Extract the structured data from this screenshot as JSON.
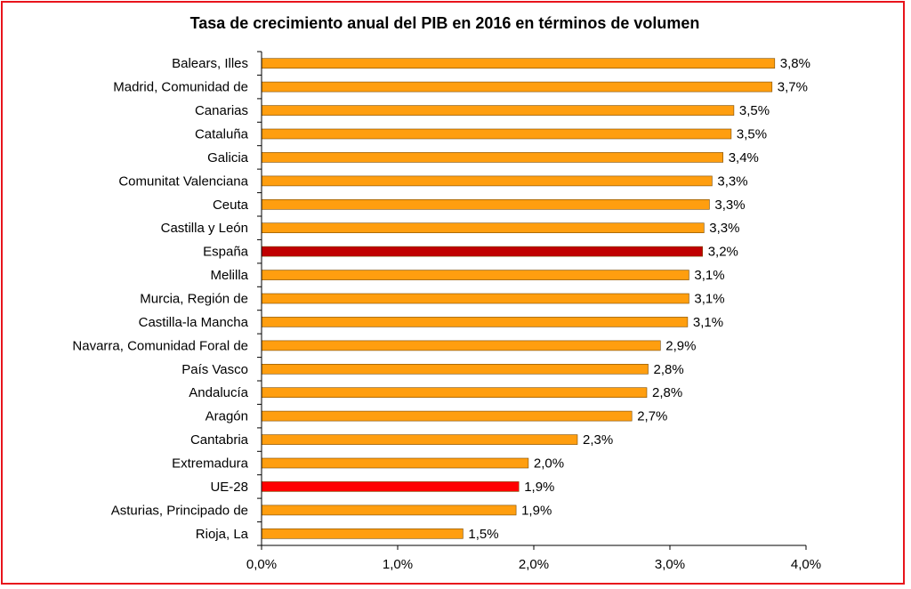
{
  "chart_data": {
    "type": "bar",
    "orientation": "horizontal",
    "title": "Tasa de crecimiento anual del PIB en 2016 en términos de volumen",
    "categories": [
      "Balears, Illes",
      "Madrid, Comunidad de",
      "Canarias",
      "Cataluña",
      "Galicia",
      "Comunitat Valenciana",
      "Ceuta",
      "Castilla y León",
      "España",
      "Melilla",
      "Murcia, Región de",
      "Castilla-la Mancha",
      "Navarra, Comunidad Foral de",
      "País Vasco",
      "Andalucía",
      "Aragón",
      "Cantabria",
      "Extremadura",
      "UE-28",
      "Asturias, Principado de",
      "Rioja, La"
    ],
    "values": [
      3.77,
      3.75,
      3.47,
      3.45,
      3.39,
      3.31,
      3.29,
      3.25,
      3.24,
      3.14,
      3.14,
      3.13,
      2.93,
      2.84,
      2.83,
      2.72,
      2.32,
      1.96,
      1.89,
      1.87,
      1.48
    ],
    "data_labels": [
      "3,8%",
      "3,7%",
      "3,5%",
      "3,5%",
      "3,4%",
      "3,3%",
      "3,3%",
      "3,3%",
      "3,2%",
      "3,1%",
      "3,1%",
      "3,1%",
      "2,9%",
      "2,8%",
      "2,8%",
      "2,7%",
      "2,3%",
      "2,0%",
      "1,9%",
      "1,9%",
      "1,5%"
    ],
    "bar_colors": [
      "#ff9e0f",
      "#ff9e0f",
      "#ff9e0f",
      "#ff9e0f",
      "#ff9e0f",
      "#ff9e0f",
      "#ff9e0f",
      "#ff9e0f",
      "#c00000",
      "#ff9e0f",
      "#ff9e0f",
      "#ff9e0f",
      "#ff9e0f",
      "#ff9e0f",
      "#ff9e0f",
      "#ff9e0f",
      "#ff9e0f",
      "#ff9e0f",
      "#ff0000",
      "#ff9e0f",
      "#ff9e0f"
    ],
    "xlim": [
      0,
      4.0
    ],
    "xticks": [
      0,
      1,
      2,
      3,
      4
    ],
    "xtick_labels": [
      "0,0%",
      "1,0%",
      "2,0%",
      "3,0%",
      "4,0%"
    ],
    "grid": false,
    "legend": "none"
  },
  "colors": {
    "default_bar": "#ff9e0f",
    "highlight_espana": "#c00000",
    "highlight_ue28": "#ff0000",
    "frame": "#e8141c"
  }
}
